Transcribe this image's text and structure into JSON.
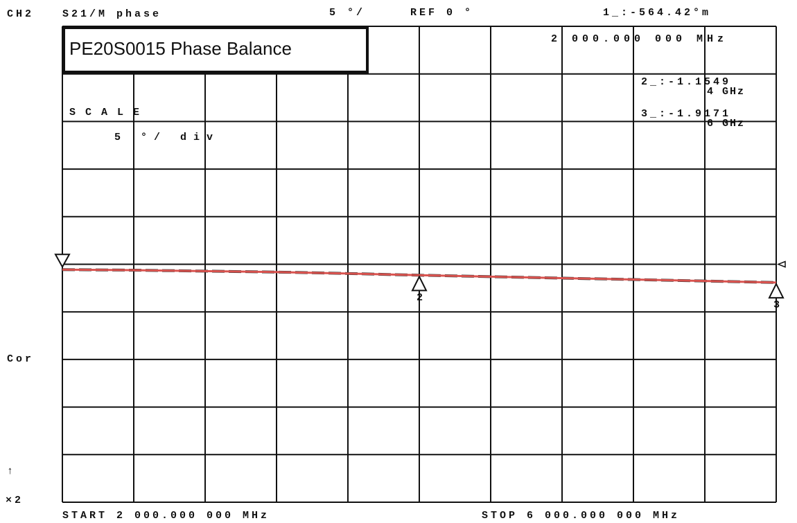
{
  "chart_data": {
    "type": "line",
    "title": "PE20S0015 Phase Balance",
    "channel": "CH2",
    "measurement": "S21/M phase",
    "scale_header": "5 °/",
    "reference": "REF 0 °",
    "scale_label": "SCALE",
    "scale_value": "5 °/ div",
    "side_labels": [
      "Cor",
      "↑",
      "×2"
    ],
    "start_label": "START 2 000.000 000 MHz",
    "stop_label": "STOP 6 000.000 000 MHz",
    "x": [
      2000,
      2400,
      2800,
      3200,
      3600,
      4000,
      4400,
      4800,
      5200,
      5600,
      6000
    ],
    "values": [
      -0.56,
      -0.62,
      -0.72,
      -0.82,
      -0.97,
      -1.15,
      -1.3,
      -1.46,
      -1.6,
      -1.76,
      -1.92
    ],
    "color": "#d9534f",
    "xlim": [
      2000,
      6000
    ],
    "ylim": [
      -25,
      25
    ],
    "markers": [
      {
        "x": 2000,
        "value": -0.56442,
        "readout": "1_:-564.42°m",
        "freq": "2 000.000 000 MHz"
      },
      {
        "name": "2",
        "x": 4000,
        "value": -1.1549,
        "readout": "2_:-1.1549",
        "freq": "4 GHz"
      },
      {
        "name": "3",
        "x": 6000,
        "value": -1.9171,
        "readout": "3_:-1.9171",
        "freq": "6 GHz"
      }
    ]
  }
}
